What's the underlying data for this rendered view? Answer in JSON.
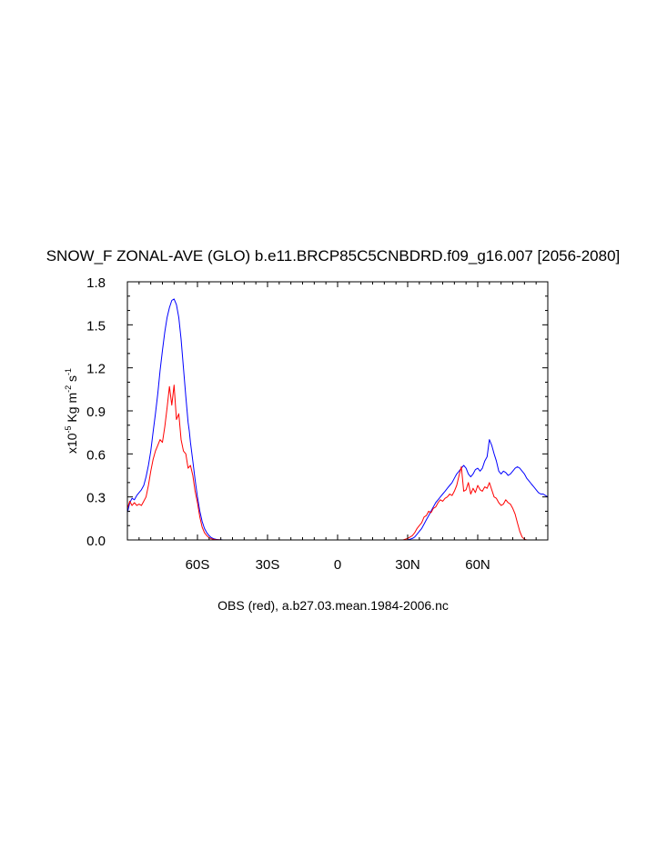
{
  "chart_data": {
    "type": "line",
    "title": "SNOW_F ZONAL-AVE (GLO) b.e11.BRCP85C5CNBDRD.f09_g16.007 [2056-2080]",
    "xlabel": "OBS (red), a.b27.03.mean.1984-2006.nc",
    "ylabel": {
      "prefix": "x10",
      "exp1": "-5",
      "units": " Kg m",
      "exp2": "-2",
      "s": " s",
      "exp3": "-1"
    },
    "xlim": [
      -90,
      90
    ],
    "ylim": [
      0.0,
      1.8
    ],
    "xticks": [
      {
        "value": -60,
        "label": "60S"
      },
      {
        "value": -30,
        "label": "30S"
      },
      {
        "value": 0,
        "label": "0"
      },
      {
        "value": 30,
        "label": "30N"
      },
      {
        "value": 60,
        "label": "60N"
      }
    ],
    "yticks": [
      {
        "value": 0.0,
        "label": "0.0"
      },
      {
        "value": 0.3,
        "label": "0.3"
      },
      {
        "value": 0.6,
        "label": "0.6"
      },
      {
        "value": 0.9,
        "label": "0.9"
      },
      {
        "value": 1.2,
        "label": "1.2"
      },
      {
        "value": 1.5,
        "label": "1.5"
      },
      {
        "value": 1.8,
        "label": "1.8"
      }
    ],
    "grid": false,
    "series": [
      {
        "color": "#0000ff",
        "x": [
          -90,
          -89,
          -88,
          -87,
          -86,
          -85,
          -84,
          -83,
          -82,
          -81,
          -80,
          -79,
          -78,
          -77,
          -76,
          -75,
          -74,
          -73,
          -72,
          -71,
          -70,
          -69,
          -68,
          -67,
          -66,
          -65,
          -64,
          -63.5,
          -63,
          -62,
          -61,
          -60,
          -59,
          -58,
          -57,
          -56,
          -55,
          -54,
          -53,
          -52,
          -51,
          -50,
          -49,
          -48,
          -47,
          -46,
          -45,
          -44,
          -43,
          -42,
          -40,
          -35,
          -30,
          -20,
          -10,
          0,
          10,
          20,
          25,
          28,
          30,
          31,
          32,
          33,
          34,
          35,
          36,
          37,
          38,
          39,
          40,
          41,
          42,
          43,
          44,
          45,
          46,
          47,
          48,
          49,
          50,
          51,
          52,
          53,
          54,
          55,
          56,
          57,
          58,
          59,
          60,
          61,
          62,
          63,
          64,
          65,
          66,
          67,
          68,
          69,
          70,
          71,
          72,
          73,
          74,
          75,
          76,
          77,
          78,
          79,
          80,
          81,
          82,
          83,
          84,
          85,
          86,
          87,
          88,
          89,
          90
        ],
        "y": [
          0.19,
          0.26,
          0.29,
          0.28,
          0.31,
          0.33,
          0.35,
          0.38,
          0.44,
          0.52,
          0.62,
          0.75,
          0.88,
          1.02,
          1.18,
          1.32,
          1.45,
          1.55,
          1.62,
          1.67,
          1.68,
          1.64,
          1.55,
          1.4,
          1.2,
          1.0,
          0.82,
          0.76,
          0.68,
          0.55,
          0.42,
          0.3,
          0.2,
          0.13,
          0.08,
          0.05,
          0.03,
          0.015,
          0.008,
          0.004,
          0.002,
          0.001,
          0.0,
          0.0,
          0.0,
          0.0,
          0.0,
          0.0,
          0.0,
          0.0,
          0.0,
          0.0,
          0.0,
          0.0,
          0.0,
          0.0,
          0.0,
          0.0,
          0.0,
          0.0,
          0.0,
          0.005,
          0.01,
          0.02,
          0.04,
          0.06,
          0.08,
          0.11,
          0.14,
          0.17,
          0.2,
          0.23,
          0.26,
          0.28,
          0.3,
          0.32,
          0.34,
          0.36,
          0.38,
          0.4,
          0.43,
          0.46,
          0.48,
          0.5,
          0.52,
          0.5,
          0.46,
          0.44,
          0.46,
          0.49,
          0.5,
          0.48,
          0.5,
          0.55,
          0.58,
          0.7,
          0.66,
          0.6,
          0.55,
          0.48,
          0.46,
          0.48,
          0.47,
          0.45,
          0.46,
          0.48,
          0.5,
          0.51,
          0.5,
          0.48,
          0.46,
          0.43,
          0.41,
          0.39,
          0.37,
          0.35,
          0.33,
          0.32,
          0.32,
          0.31,
          0.3
        ]
      },
      {
        "color": "#ff0000",
        "x": [
          -90,
          -89,
          -88,
          -87,
          -86,
          -85,
          -84,
          -83,
          -82,
          -81,
          -80,
          -79,
          -78,
          -77,
          -76,
          -75,
          -74,
          -73,
          -72,
          -71,
          -70,
          -69,
          -68,
          -67,
          -66,
          -65,
          -64,
          -63,
          -62,
          -61,
          -60,
          -59,
          -58,
          -57,
          -56,
          -55,
          -54,
          -53,
          -52,
          -51,
          -50,
          -49,
          -48,
          -47,
          -46,
          -45,
          -44,
          -43,
          -42,
          -40,
          -35,
          -30,
          -20,
          -10,
          0,
          10,
          20,
          25,
          28,
          29,
          30,
          31,
          32,
          33,
          34,
          35,
          36,
          37,
          38,
          39,
          40,
          41,
          42,
          43,
          44,
          45,
          46,
          47,
          48,
          49,
          50,
          51,
          52,
          53,
          54,
          55,
          56,
          57,
          58,
          59,
          60,
          61,
          62,
          63,
          64,
          65,
          66,
          67,
          68,
          69,
          70,
          71,
          72,
          73,
          74,
          75,
          76,
          77,
          78,
          79,
          80,
          81,
          82,
          83,
          84,
          85,
          86,
          87,
          88,
          89,
          90
        ],
        "y": [
          0.22,
          0.27,
          0.24,
          0.26,
          0.24,
          0.25,
          0.24,
          0.27,
          0.3,
          0.38,
          0.48,
          0.56,
          0.62,
          0.66,
          0.7,
          0.68,
          0.79,
          0.92,
          1.07,
          0.94,
          1.08,
          0.84,
          0.88,
          0.7,
          0.62,
          0.6,
          0.5,
          0.52,
          0.45,
          0.34,
          0.26,
          0.16,
          0.09,
          0.05,
          0.03,
          0.015,
          0.008,
          0.004,
          0.002,
          0.001,
          0.0,
          0.0,
          0.0,
          0.0,
          0.0,
          0.0,
          0.0,
          0.0,
          0.0,
          0.0,
          0.0,
          0.0,
          0.0,
          0.0,
          0.0,
          0.0,
          0.0,
          0.0,
          0.0,
          0.005,
          0.01,
          0.02,
          0.03,
          0.05,
          0.08,
          0.1,
          0.12,
          0.16,
          0.17,
          0.2,
          0.19,
          0.22,
          0.23,
          0.26,
          0.28,
          0.27,
          0.29,
          0.3,
          0.32,
          0.31,
          0.34,
          0.38,
          0.45,
          0.51,
          0.34,
          0.35,
          0.4,
          0.32,
          0.36,
          0.33,
          0.38,
          0.35,
          0.34,
          0.37,
          0.36,
          0.4,
          0.35,
          0.3,
          0.29,
          0.26,
          0.24,
          0.25,
          0.28,
          0.26,
          0.25,
          0.22,
          0.18,
          0.12,
          0.06,
          0.02,
          0.005,
          0.0,
          0.0,
          0.0,
          0.0,
          0.0,
          0.0,
          0.0,
          0.0,
          0.0,
          0.0
        ]
      }
    ]
  }
}
